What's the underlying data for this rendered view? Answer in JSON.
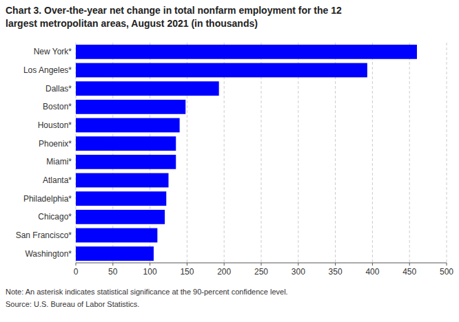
{
  "chart_data": {
    "type": "bar",
    "orientation": "horizontal",
    "title": [
      "Chart 3. Over-the-year net change in total nonfarm employment for the 12",
      "largest metropolitan areas, August 2021 (in thousands)"
    ],
    "categories": [
      "Washington*",
      "San Francisco*",
      "Chicago*",
      "Philadelphia*",
      "Atlanta*",
      "Miami*",
      "Phoenix*",
      "Houston*",
      "Boston*",
      "Dallas*",
      "Los Angeles*",
      "New York*"
    ],
    "values": [
      105,
      110,
      120,
      122,
      125,
      135,
      135,
      140,
      148,
      193,
      393,
      460
    ],
    "color": "#0000FF",
    "xlim": [
      0,
      500
    ],
    "xticks": [
      0,
      50,
      100,
      150,
      200,
      250,
      300,
      350,
      400,
      450,
      500
    ],
    "grid": true,
    "annotations": [
      "Note: An asterisk indicates statistical significance at the 90-percent confidence level.",
      "Source: U.S. Bureau of Labor Statistics."
    ]
  }
}
